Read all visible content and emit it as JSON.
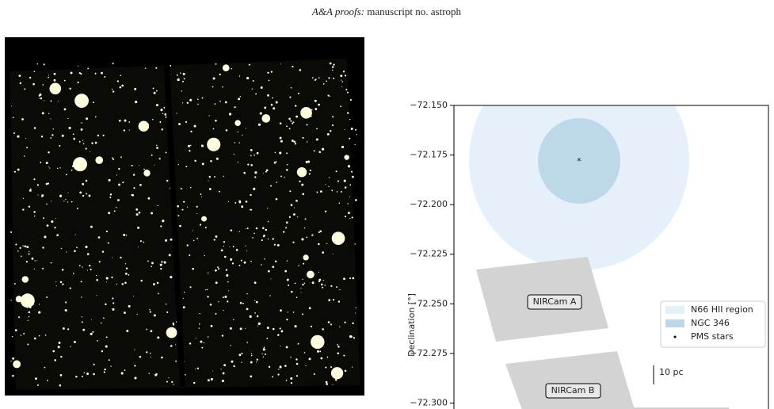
{
  "header": {
    "journal": "A&A proofs:",
    "manuscript": "manuscript no. astroph"
  },
  "chart_data": {
    "type": "region-map",
    "ylabel": "Declination [°]",
    "ylim": [
      -72.303,
      -72.15
    ],
    "yticks": [
      {
        "value": -72.15,
        "label": "−72.150"
      },
      {
        "value": -72.175,
        "label": "−72.175"
      },
      {
        "value": -72.2,
        "label": "−72.200"
      },
      {
        "value": -72.225,
        "label": "−72.225"
      },
      {
        "value": -72.25,
        "label": "−72.250"
      },
      {
        "value": -72.275,
        "label": "−72.275"
      },
      {
        "value": -72.3,
        "label": "−72.300"
      }
    ],
    "series": [
      {
        "name": "N66 HII region",
        "color": "#e6f0fa"
      },
      {
        "name": "NGC 346",
        "color": "#bdd8e9"
      },
      {
        "name": "PMS stars",
        "color": "#000000"
      }
    ],
    "annotations": [
      "NIRCam A",
      "NIRCam B",
      "10 pc"
    ]
  }
}
